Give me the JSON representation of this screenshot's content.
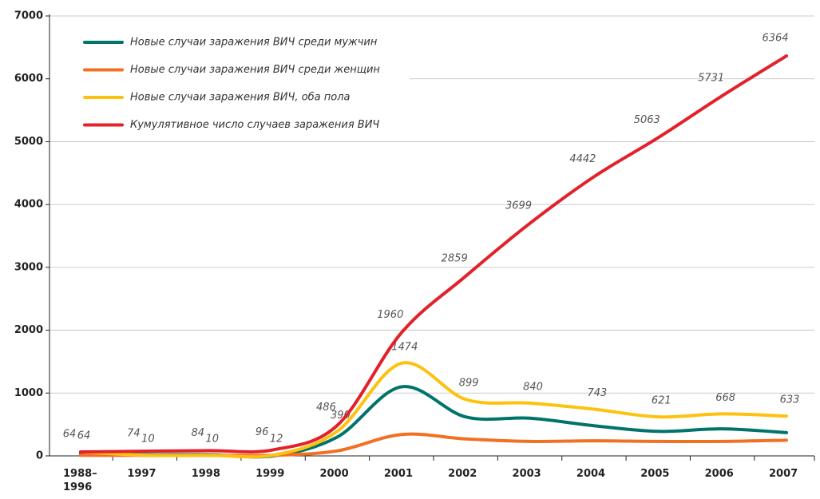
{
  "chart_data": {
    "type": "line",
    "categories": [
      "1988–1996",
      "1997",
      "1998",
      "1999",
      "2000",
      "2001",
      "2002",
      "2003",
      "2004",
      "2005",
      "2006",
      "2007"
    ],
    "series": [
      {
        "name": "Новые случаи заражения ВИЧ среди мужчин",
        "color": "#00746b",
        "values": [
          40,
          20,
          20,
          0,
          300,
          1100,
          620,
          600,
          480,
          390,
          430,
          370
        ]
      },
      {
        "name": "Новые случаи заражения ВИЧ среди женщин",
        "color": "#f07124",
        "values": [
          10,
          10,
          10,
          10,
          80,
          340,
          270,
          230,
          240,
          230,
          230,
          250
        ]
      },
      {
        "name": "Новые случаи заражения ВИЧ, оба пола",
        "color": "#fdc20f",
        "values": [
          64,
          10,
          10,
          12,
          390,
          1474,
          899,
          840,
          743,
          621,
          668,
          633
        ],
        "show_labels": true
      },
      {
        "name": "Кумулятивное число случаев заражения ВИЧ",
        "color": "#e3212b",
        "values": [
          64,
          74,
          84,
          96,
          486,
          1960,
          2859,
          3699,
          4442,
          5063,
          5731,
          6364
        ],
        "show_labels": true
      }
    ],
    "ylim": [
      0,
      7000
    ],
    "yticks": [
      0,
      1000,
      2000,
      3000,
      4000,
      5000,
      6000,
      7000
    ],
    "grid": true,
    "legend": "upper left"
  }
}
